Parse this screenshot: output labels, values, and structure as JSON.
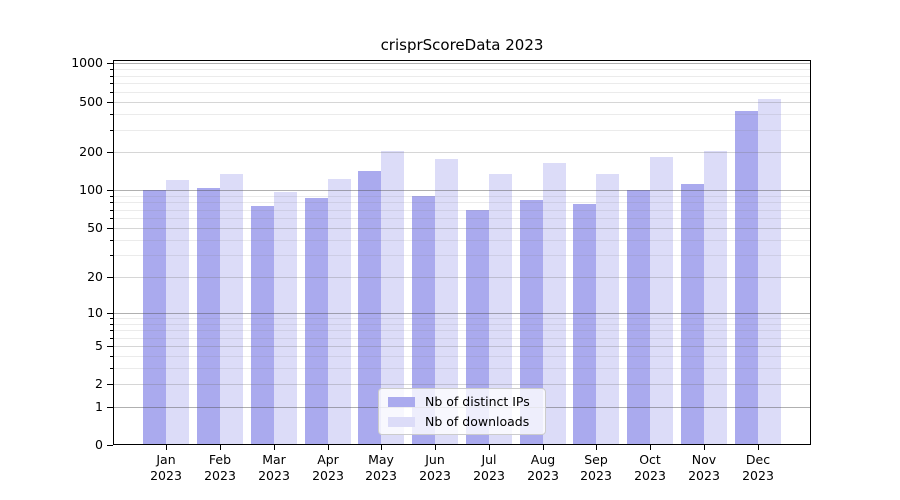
{
  "title": "crisprScoreData 2023",
  "colors": {
    "background": "#ffffff",
    "series_ips": "#aaaaee",
    "series_downloads": "#dcdcf8",
    "grid_major": "rgba(80,80,80,0.45)",
    "grid_mid": "rgba(120,120,120,0.30)",
    "grid_minor": "rgba(130,130,130,0.16)",
    "axis": "#000000",
    "legend_border": "#cccccc"
  },
  "chart_data": {
    "type": "bar",
    "title": "crisprScoreData 2023",
    "xlabel": "",
    "ylabel": "",
    "grid": true,
    "legend_position": "bottom-center",
    "y_axis": {
      "scale": "log10(1+x)",
      "ylim": [
        0,
        1060
      ],
      "ticks": [
        {
          "label": "1000",
          "value": 1000
        },
        {
          "label": "500",
          "value": 500
        },
        {
          "label": "200",
          "value": 200
        },
        {
          "label": "100",
          "value": 100
        },
        {
          "label": "50",
          "value": 50
        },
        {
          "label": "20",
          "value": 20
        },
        {
          "label": "10",
          "value": 10
        },
        {
          "label": "5",
          "value": 5
        },
        {
          "label": "2",
          "value": 2
        },
        {
          "label": "1",
          "value": 1
        },
        {
          "label": "0",
          "value": 0
        }
      ],
      "minor_grid_values": [
        3,
        4,
        6,
        7,
        8,
        9,
        30,
        40,
        60,
        70,
        80,
        90,
        300,
        400,
        600,
        700,
        800,
        900
      ],
      "mid_grid_values": [
        2,
        5,
        20,
        50,
        200,
        500
      ],
      "major_grid_values": [
        1,
        10,
        100,
        1000
      ]
    },
    "categories": [
      {
        "month": "Jan",
        "year": "2023"
      },
      {
        "month": "Feb",
        "year": "2023"
      },
      {
        "month": "Mar",
        "year": "2023"
      },
      {
        "month": "Apr",
        "year": "2023"
      },
      {
        "month": "May",
        "year": "2023"
      },
      {
        "month": "Jun",
        "year": "2023"
      },
      {
        "month": "Jul",
        "year": "2023"
      },
      {
        "month": "Aug",
        "year": "2023"
      },
      {
        "month": "Sep",
        "year": "2023"
      },
      {
        "month": "Oct",
        "year": "2023"
      },
      {
        "month": "Nov",
        "year": "2023"
      },
      {
        "month": "Dec",
        "year": "2023"
      }
    ],
    "series": [
      {
        "name": "Nb of distinct IPs",
        "color": "#aaaaee",
        "values": [
          101,
          103,
          75,
          86,
          142,
          89,
          69,
          83,
          78,
          101,
          112,
          418
        ]
      },
      {
        "name": "Nb of downloads",
        "color": "#dcdcf8",
        "values": [
          121,
          134,
          97,
          123,
          205,
          177,
          134,
          165,
          134,
          184,
          202,
          521
        ]
      }
    ]
  }
}
